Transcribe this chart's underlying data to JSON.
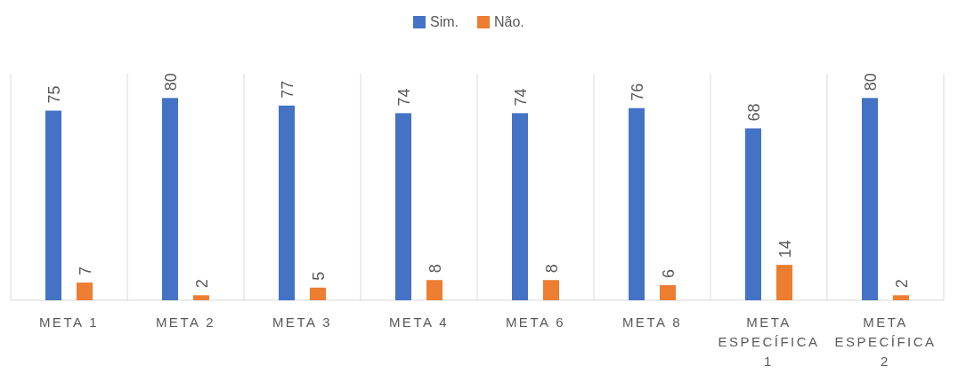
{
  "chart_data": {
    "type": "bar",
    "categories": [
      "META 1",
      "META 2",
      "META 3",
      "META 4",
      "META 6",
      "META 8",
      "META ESPECÍFICA 1",
      "META ESPECÍFICA 2"
    ],
    "series": [
      {
        "name": "Sim.",
        "color": "#4472c4",
        "values": [
          75,
          80,
          77,
          74,
          74,
          76,
          68,
          80
        ]
      },
      {
        "name": "Não.",
        "color": "#ed7d31",
        "values": [
          7,
          2,
          5,
          8,
          8,
          6,
          14,
          2
        ]
      }
    ],
    "data_labels": true,
    "grid": "x",
    "legend": "top"
  }
}
